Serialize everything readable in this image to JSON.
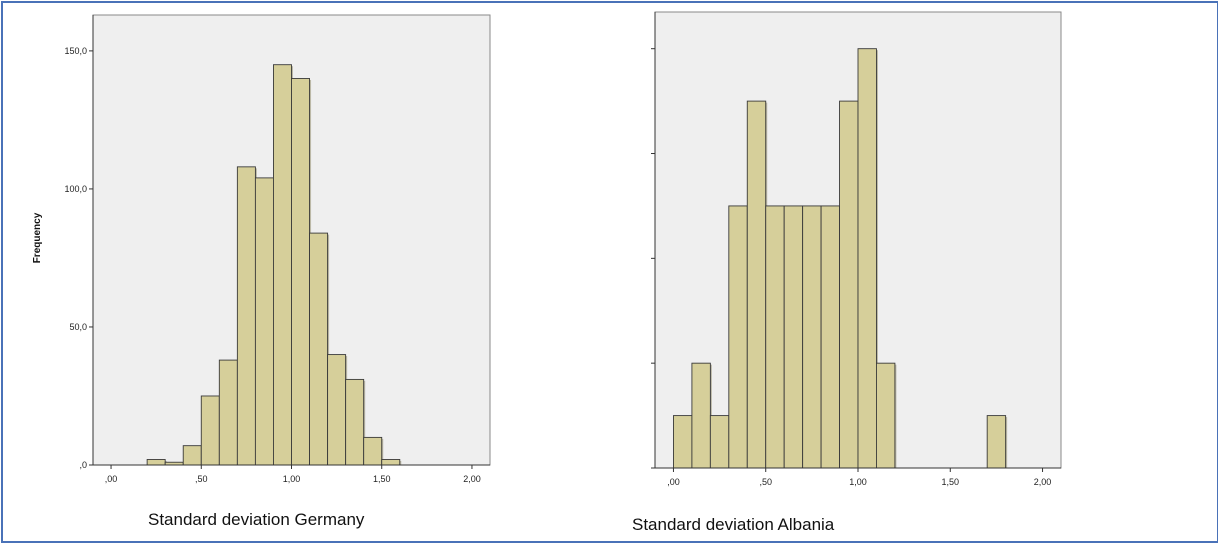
{
  "chart_data": [
    {
      "type": "bar",
      "histogram": true,
      "title": "",
      "xlabel": "Standard deviation Germany",
      "ylabel": "Frequency",
      "xlim": [
        -0.1,
        2.1
      ],
      "ylim": [
        0,
        163
      ],
      "x_ticks": [
        0,
        0.5,
        1,
        1.5,
        2
      ],
      "x_tick_labels": [
        ",00",
        ",50",
        "1,00",
        "1,50",
        "2,00"
      ],
      "y_ticks": [
        0,
        50,
        100,
        150
      ],
      "y_tick_labels": [
        ",0",
        "50,0",
        "100,0",
        "150,0"
      ],
      "bin_width": 0.1,
      "x": [
        0.25,
        0.35,
        0.45,
        0.55,
        0.65,
        0.75,
        0.85,
        0.95,
        1.05,
        1.15,
        1.25,
        1.35,
        1.45,
        1.55
      ],
      "values": [
        2,
        1,
        7,
        25,
        38,
        108,
        104,
        145,
        140,
        84,
        40,
        31,
        10,
        2
      ],
      "bar_color": "#d6cf9a",
      "plot_background": "#efefef",
      "grid": false
    },
    {
      "type": "bar",
      "histogram": true,
      "title": "",
      "xlabel": "Standard deviation Albania",
      "ylabel": "",
      "xlim": [
        -0.1,
        2.1
      ],
      "ylim": [
        0,
        8.7
      ],
      "x_ticks": [
        0,
        0.5,
        1,
        1.5,
        2
      ],
      "x_tick_labels": [
        ",00",
        ",50",
        "1,00",
        "1,50",
        "2,00"
      ],
      "y_ticks": [
        0,
        2,
        4,
        6,
        8
      ],
      "y_tick_labels": [
        "",
        "",
        "",
        "",
        ""
      ],
      "bin_width": 0.1,
      "x": [
        0.05,
        0.15,
        0.25,
        0.35,
        0.45,
        0.55,
        0.65,
        0.75,
        0.85,
        0.95,
        1.05,
        1.15,
        1.75
      ],
      "values": [
        1,
        2,
        1,
        5,
        7,
        5,
        5,
        5,
        5,
        7,
        8,
        2,
        1
      ],
      "bar_color": "#d6cf9a",
      "plot_background": "#efefef",
      "grid": false
    }
  ]
}
